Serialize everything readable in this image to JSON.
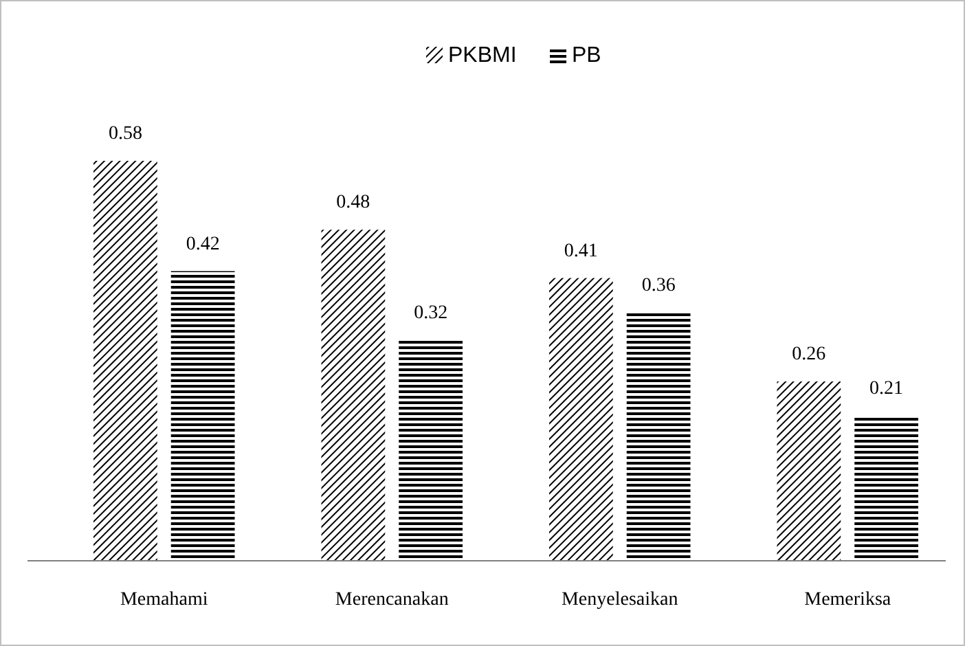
{
  "chart_data": {
    "type": "bar",
    "categories": [
      "Memahami",
      "Merencanakan",
      "Menyelesaikan",
      "Memeriksa"
    ],
    "series": [
      {
        "name": "PKBMI",
        "color": "#000000",
        "values": [
          0.58,
          0.48,
          0.41,
          0.26
        ]
      },
      {
        "name": "PB",
        "color": "#000000",
        "values": [
          0.42,
          0.32,
          0.36,
          0.21
        ]
      }
    ],
    "data_labels": true,
    "legend": "top"
  }
}
